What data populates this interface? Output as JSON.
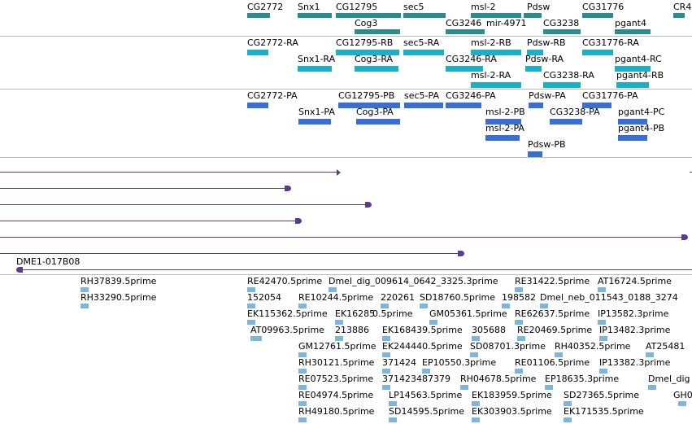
{
  "gene_track": {
    "labels": [
      "CG2772",
      "Snx1",
      "CG12795",
      "sec5",
      "msl-2",
      "Pdsw",
      "CG31776",
      "CR4",
      "Cog3",
      "CG3246",
      "mir-4971",
      "CG3238",
      "pgant4"
    ]
  },
  "rna_track": {
    "labels": [
      "CG2772-RA",
      "CG12795-RB",
      "sec5-RA",
      "msl-2-RB",
      "Pdsw-RB",
      "CG31776-RA",
      "Snx1-RA",
      "Cog3-RA",
      "CG3246-RA",
      "Pdsw-RA",
      "pgant4-RC",
      "msl-2-RA",
      "CG3238-RA",
      "pgant4-RB"
    ]
  },
  "protein_track": {
    "labels": [
      "CG2772-PA",
      "CG12795-PB",
      "sec5-PA",
      "CG3246-PA",
      "Pdsw-PA",
      "CG31776-PA",
      "Snx1-PA",
      "Cog3-PA",
      "msl-2-PB",
      "CG3238-PA",
      "pgant4-PC",
      "msl-2-PA",
      "pgant4-PB",
      "Pdsw-PB"
    ]
  },
  "clone_track": {
    "label": "DME1-017B08"
  },
  "est_track": {
    "labels": [
      "RH37839.5prime",
      "RH33290.5prime",
      "RE42470.5prime",
      "Dmel_dig_009614_0642_3325.3prime",
      "RE31422.5prime",
      "AT16724.5prime",
      "152054",
      "RE10244.5prime",
      "220261",
      "SD18760.5prime",
      "198582",
      "Dmel_neb_011543_0188_3274",
      "EK115362.5prime",
      "EK16285",
      "0.5prime",
      "GM05361.5prime",
      "RE62637.5prime",
      "IP13582.3prime",
      "AT09963.5prime",
      "213886",
      "EK168439.5prime",
      "305688",
      "RE20469.5prime",
      "IP13482.3prime",
      "GM12761.5prime",
      "EK244440.5prime",
      "SD08701.3prime",
      "RH40352.5prime",
      "AT25481",
      "RH30121.5prime",
      "371424",
      "EP10550.3prime",
      "RE01106.5prime",
      "IP13382.3prime",
      "RE07523.5prime",
      "371423487379",
      "RH04678.5prime",
      "EP18635.3prime",
      "Dmel_dig",
      "RE04974.5prime",
      "LP14563.5prime",
      "EK183959.5prime",
      "SD27365.5prime",
      "GH0",
      "RH49180.5prime",
      "SD14595.5prime",
      "EK303903.5prime",
      "EK171535.5prime"
    ]
  }
}
